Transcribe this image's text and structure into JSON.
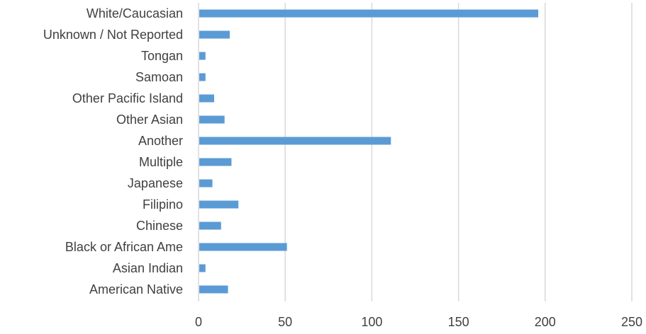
{
  "chart_data": {
    "type": "bar",
    "orientation": "horizontal",
    "title": "",
    "xlabel": "",
    "ylabel": "",
    "categories": [
      "White/Caucasian",
      "Unknown / Not Reported",
      "Tongan",
      "Samoan",
      "Other Pacific Island",
      "Other Asian",
      "Another",
      "Multiple",
      "Japanese",
      "Filipino",
      "Chinese",
      "Black or African Ame",
      "Asian Indian",
      "American Native"
    ],
    "values": [
      196,
      18,
      4,
      4,
      9,
      15,
      111,
      19,
      8,
      23,
      13,
      51,
      4,
      17
    ],
    "xlim": [
      0,
      250
    ],
    "xticks": [
      "0",
      "50",
      "100",
      "150",
      "200",
      "250"
    ],
    "grid": "vertical",
    "legend": "none",
    "bar_color": "#5B9BD5",
    "grid_color": "#D9D9D9"
  }
}
